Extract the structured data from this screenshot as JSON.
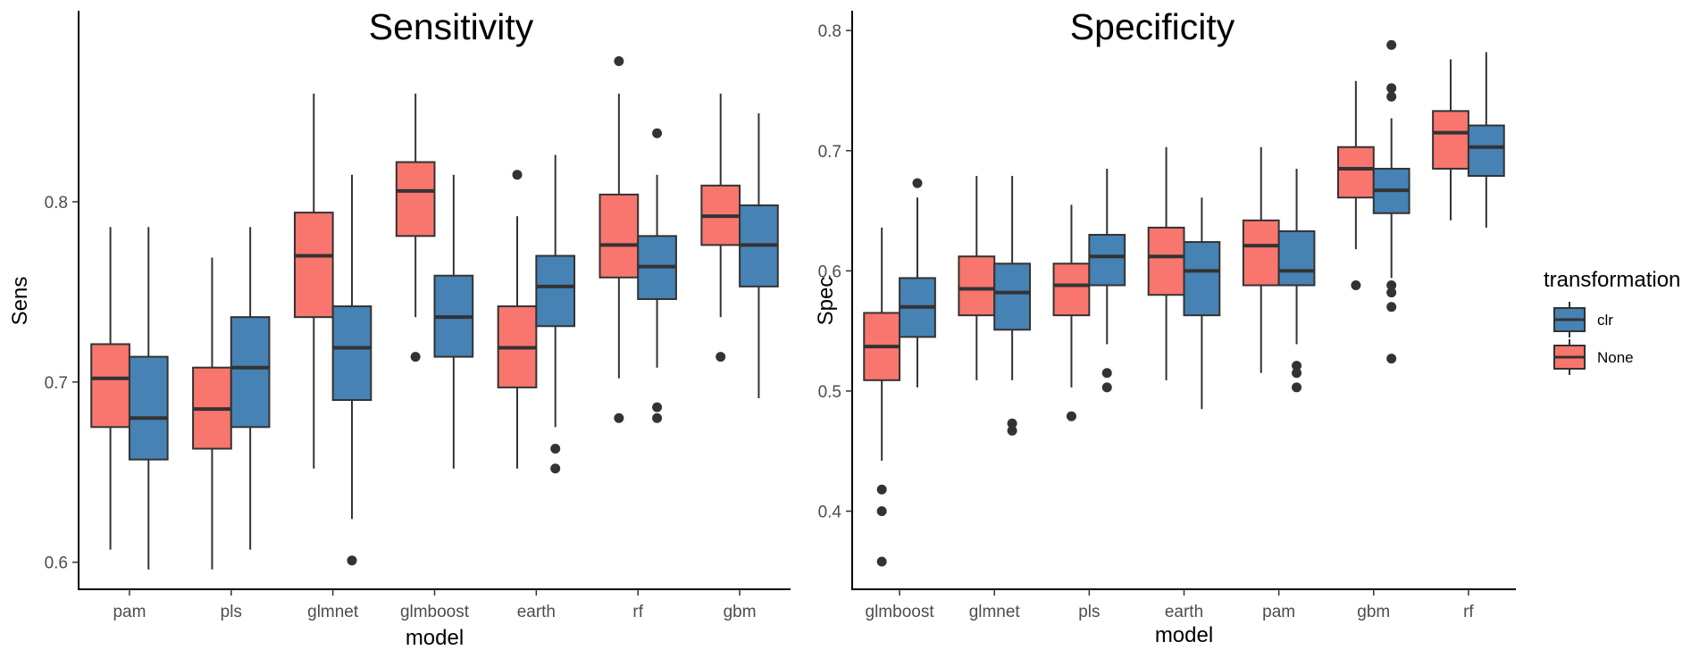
{
  "chart_data": [
    {
      "type": "boxplot",
      "title": "Sensitivity",
      "xlabel": "model",
      "ylabel": "Sens",
      "ylim": [
        0.585,
        0.905
      ],
      "yticks": [
        0.6,
        0.7,
        0.8
      ],
      "ytick_labels": [
        "0.6",
        "0.7",
        "0.8"
      ],
      "categories": [
        "pam",
        "pls",
        "glmnet",
        "glmboost",
        "earth",
        "rf",
        "gbm"
      ],
      "series": [
        {
          "name": "None",
          "color": "#f8766d",
          "boxes": [
            {
              "min": 0.607,
              "q1": 0.675,
              "median": 0.702,
              "q3": 0.721,
              "max": 0.786,
              "outliers": []
            },
            {
              "min": 0.596,
              "q1": 0.663,
              "median": 0.685,
              "q3": 0.708,
              "max": 0.769,
              "outliers": []
            },
            {
              "min": 0.652,
              "q1": 0.736,
              "median": 0.77,
              "q3": 0.794,
              "max": 0.86,
              "outliers": []
            },
            {
              "min": 0.736,
              "q1": 0.781,
              "median": 0.806,
              "q3": 0.822,
              "max": 0.86,
              "outliers": [
                0.714
              ]
            },
            {
              "min": 0.652,
              "q1": 0.697,
              "median": 0.719,
              "q3": 0.742,
              "max": 0.792,
              "outliers": [
                0.815
              ]
            },
            {
              "min": 0.702,
              "q1": 0.758,
              "median": 0.776,
              "q3": 0.804,
              "max": 0.86,
              "outliers": [
                0.68,
                0.878
              ]
            },
            {
              "min": 0.736,
              "q1": 0.776,
              "median": 0.792,
              "q3": 0.809,
              "max": 0.86,
              "outliers": [
                0.714
              ]
            }
          ]
        },
        {
          "name": "clr",
          "color": "#4682b4",
          "boxes": [
            {
              "min": 0.596,
              "q1": 0.657,
              "median": 0.68,
              "q3": 0.714,
              "max": 0.786,
              "outliers": []
            },
            {
              "min": 0.607,
              "q1": 0.675,
              "median": 0.708,
              "q3": 0.736,
              "max": 0.786,
              "outliers": []
            },
            {
              "min": 0.624,
              "q1": 0.69,
              "median": 0.719,
              "q3": 0.742,
              "max": 0.815,
              "outliers": [
                0.601
              ]
            },
            {
              "min": 0.652,
              "q1": 0.714,
              "median": 0.736,
              "q3": 0.759,
              "max": 0.815,
              "outliers": []
            },
            {
              "min": 0.675,
              "q1": 0.731,
              "median": 0.753,
              "q3": 0.77,
              "max": 0.826,
              "outliers": [
                0.652,
                0.663
              ]
            },
            {
              "min": 0.708,
              "q1": 0.746,
              "median": 0.764,
              "q3": 0.781,
              "max": 0.815,
              "outliers": [
                0.68,
                0.686,
                0.838
              ]
            },
            {
              "min": 0.691,
              "q1": 0.753,
              "median": 0.776,
              "q3": 0.798,
              "max": 0.849,
              "outliers": []
            }
          ]
        }
      ]
    },
    {
      "type": "boxplot",
      "title": "Specificity",
      "xlabel": "model",
      "ylabel": "Spec",
      "ylim": [
        0.335,
        0.815
      ],
      "yticks": [
        0.4,
        0.5,
        0.6,
        0.7,
        0.8
      ],
      "ytick_labels": [
        "0.4",
        "0.5",
        "0.6",
        "0.7",
        "0.8"
      ],
      "categories": [
        "glmboost",
        "glmnet",
        "pls",
        "earth",
        "pam",
        "gbm",
        "rf"
      ],
      "series": [
        {
          "name": "None",
          "color": "#f8766d",
          "boxes": [
            {
              "min": 0.442,
              "q1": 0.509,
              "median": 0.537,
              "q3": 0.565,
              "max": 0.636,
              "outliers": [
                0.358,
                0.4,
                0.418
              ]
            },
            {
              "min": 0.509,
              "q1": 0.563,
              "median": 0.585,
              "q3": 0.612,
              "max": 0.679,
              "outliers": []
            },
            {
              "min": 0.503,
              "q1": 0.563,
              "median": 0.588,
              "q3": 0.606,
              "max": 0.655,
              "outliers": [
                0.479
              ]
            },
            {
              "min": 0.509,
              "q1": 0.58,
              "median": 0.612,
              "q3": 0.636,
              "max": 0.703,
              "outliers": []
            },
            {
              "min": 0.515,
              "q1": 0.588,
              "median": 0.621,
              "q3": 0.642,
              "max": 0.703,
              "outliers": []
            },
            {
              "min": 0.618,
              "q1": 0.661,
              "median": 0.685,
              "q3": 0.703,
              "max": 0.758,
              "outliers": [
                0.588
              ]
            },
            {
              "min": 0.642,
              "q1": 0.685,
              "median": 0.715,
              "q3": 0.733,
              "max": 0.776,
              "outliers": []
            }
          ]
        },
        {
          "name": "clr",
          "color": "#4682b4",
          "boxes": [
            {
              "min": 0.503,
              "q1": 0.545,
              "median": 0.57,
              "q3": 0.594,
              "max": 0.661,
              "outliers": [
                0.673
              ]
            },
            {
              "min": 0.509,
              "q1": 0.551,
              "median": 0.582,
              "q3": 0.606,
              "max": 0.679,
              "outliers": [
                0.467,
                0.473
              ]
            },
            {
              "min": 0.539,
              "q1": 0.588,
              "median": 0.612,
              "q3": 0.63,
              "max": 0.685,
              "outliers": [
                0.503,
                0.515
              ]
            },
            {
              "min": 0.485,
              "q1": 0.563,
              "median": 0.6,
              "q3": 0.624,
              "max": 0.661,
              "outliers": []
            },
            {
              "min": 0.539,
              "q1": 0.588,
              "median": 0.6,
              "q3": 0.633,
              "max": 0.685,
              "outliers": [
                0.503,
                0.515,
                0.521
              ]
            },
            {
              "min": 0.594,
              "q1": 0.648,
              "median": 0.667,
              "q3": 0.685,
              "max": 0.727,
              "outliers": [
                0.527,
                0.57,
                0.582,
                0.588,
                0.745,
                0.752,
                0.788
              ]
            },
            {
              "min": 0.636,
              "q1": 0.679,
              "median": 0.703,
              "q3": 0.721,
              "max": 0.782,
              "outliers": []
            }
          ]
        }
      ]
    }
  ],
  "legend": {
    "title": "transformation",
    "items": [
      {
        "label": "clr",
        "color": "#4682b4"
      },
      {
        "label": "None",
        "color": "#f8766d"
      }
    ]
  }
}
